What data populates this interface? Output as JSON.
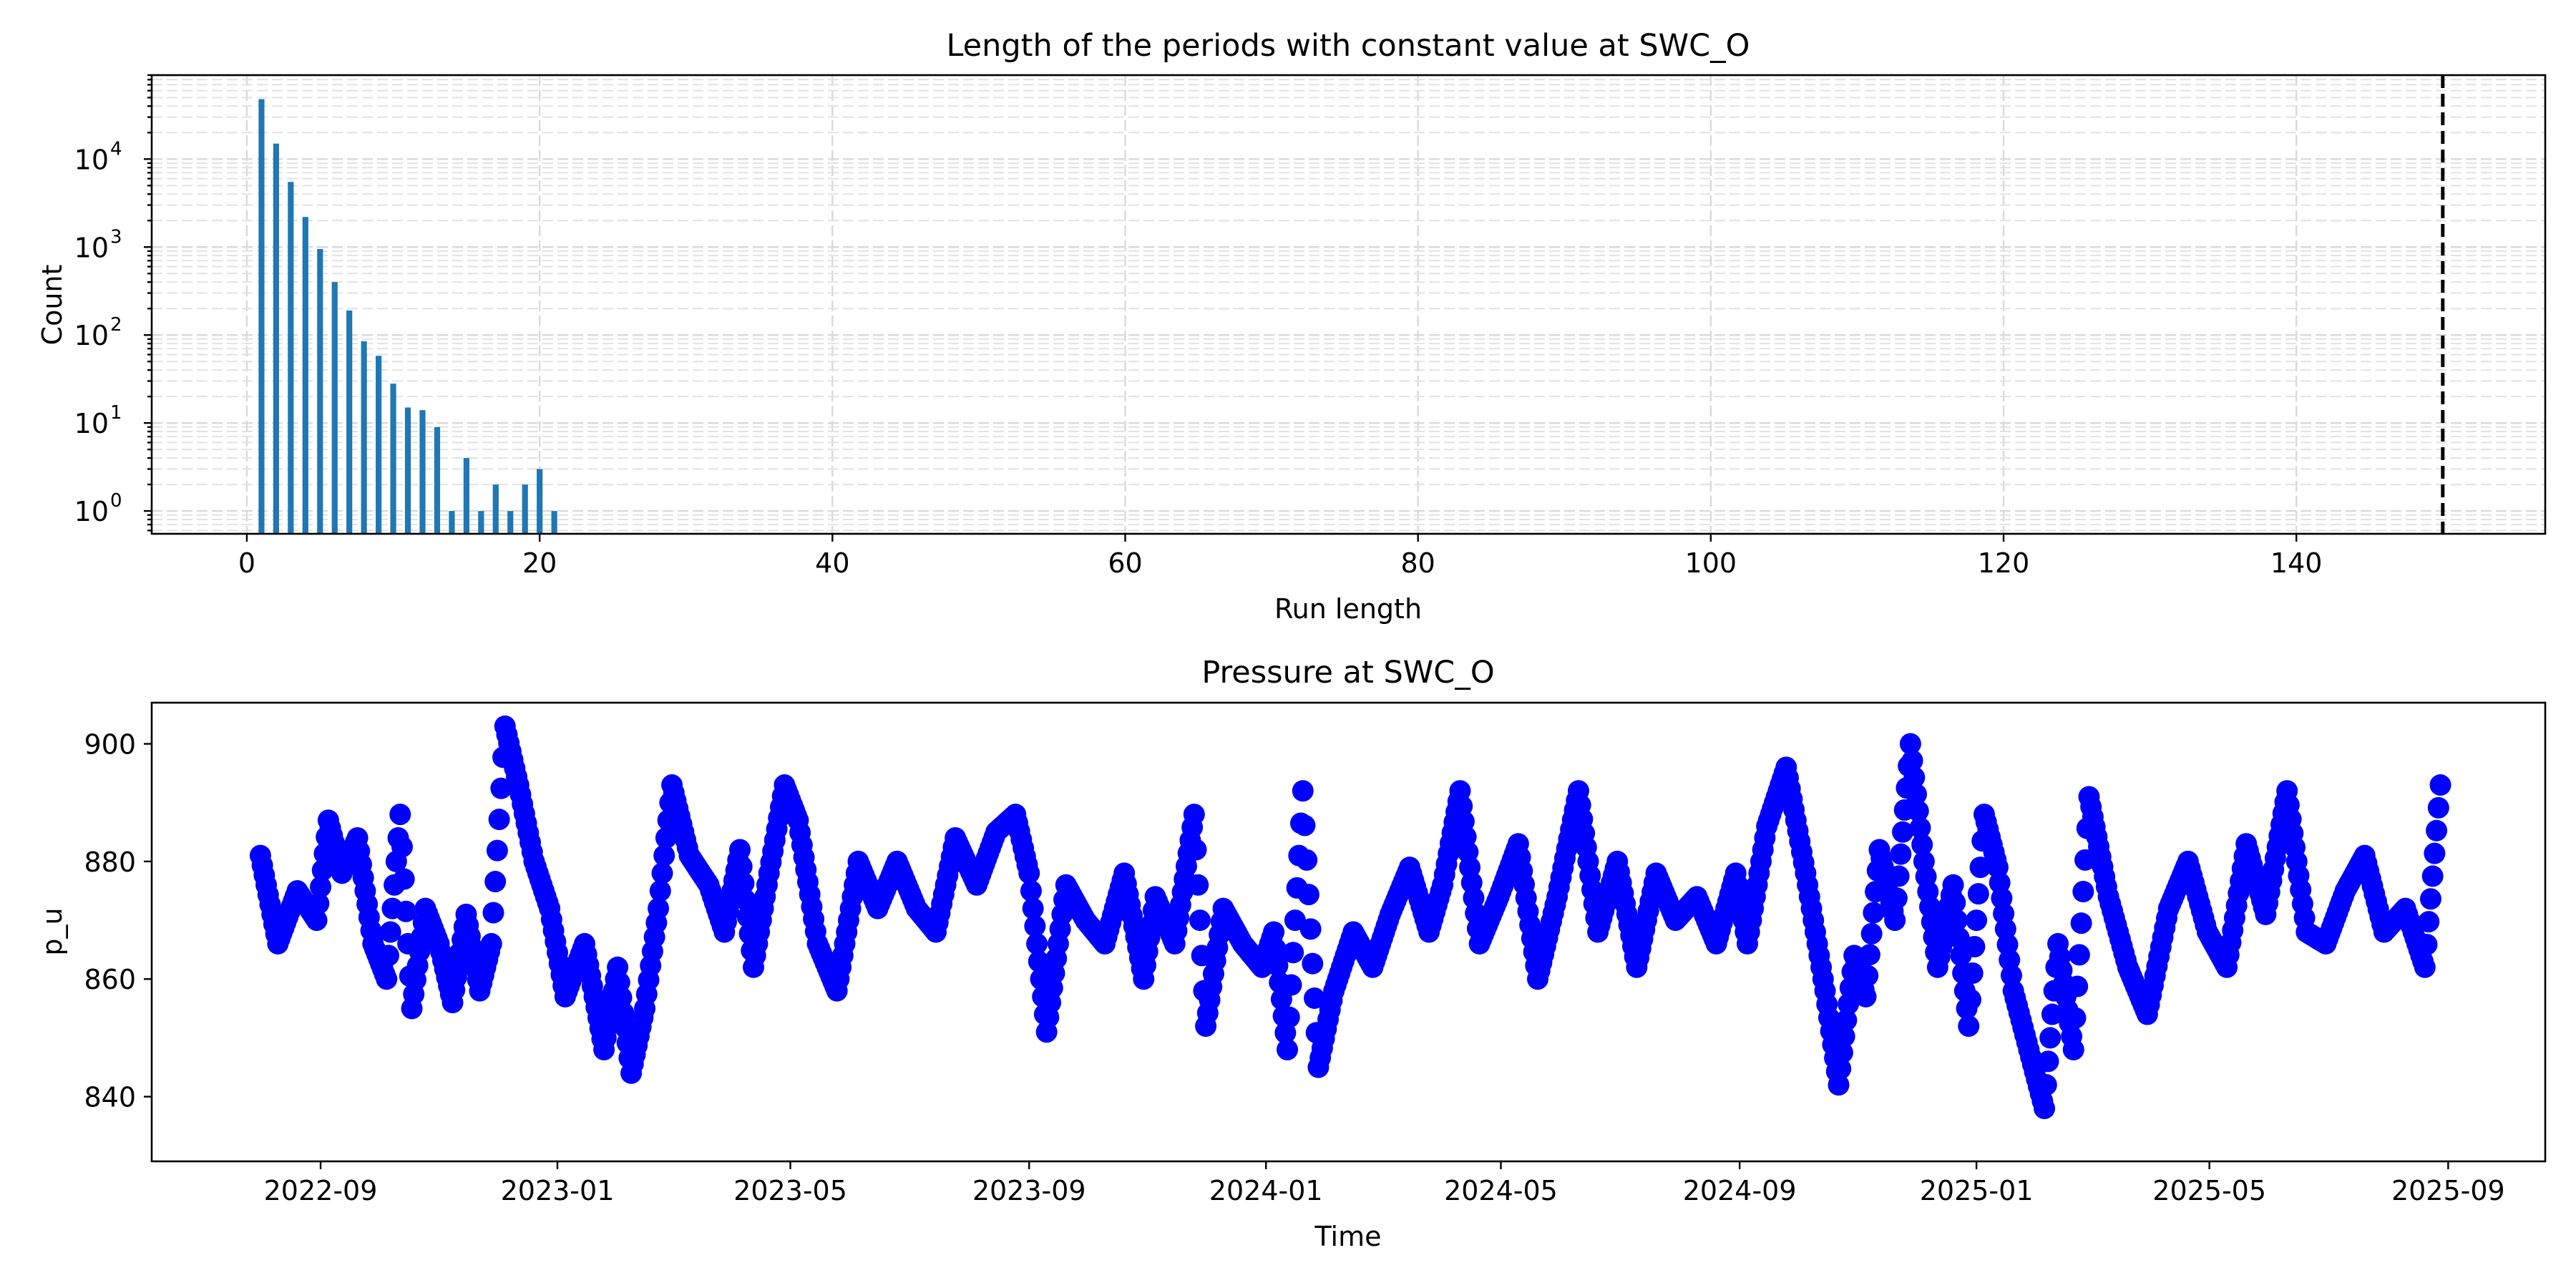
{
  "chart_data": [
    {
      "type": "bar",
      "title": "Length of the periods with constant value at SWC_O",
      "xlabel": "Run length",
      "ylabel": "Count",
      "yscale": "log",
      "xlim": [
        -6.5,
        157
      ],
      "ylim": [
        0.55,
        90000
      ],
      "xticks": [
        0,
        20,
        40,
        60,
        80,
        100,
        120,
        140
      ],
      "xtick_labels": [
        "0",
        "20",
        "40",
        "60",
        "80",
        "100",
        "120",
        "140"
      ],
      "yticks": [
        1,
        10,
        100,
        1000,
        10000
      ],
      "ytick_labels": [
        {
          "base": "10",
          "exp": "0"
        },
        {
          "base": "10",
          "exp": "1"
        },
        {
          "base": "10",
          "exp": "2"
        },
        {
          "base": "10",
          "exp": "3"
        },
        {
          "base": "10",
          "exp": "4"
        }
      ],
      "grid": true,
      "bar_color": "#1f77b4",
      "x": [
        1,
        2,
        3,
        4,
        5,
        6,
        7,
        8,
        9,
        10,
        11,
        12,
        13,
        14,
        15,
        16,
        17,
        18,
        19,
        20,
        21
      ],
      "values": [
        48000,
        15000,
        5500,
        2200,
        950,
        400,
        190,
        85,
        58,
        28,
        15,
        14,
        9,
        1,
        4,
        1,
        2,
        1,
        2,
        3,
        1
      ],
      "threshold": {
        "x": 150,
        "style": "dashed",
        "color": "#000000"
      }
    },
    {
      "type": "scatter",
      "title": "Pressure at SWC_O",
      "xlabel": "Time",
      "ylabel": "p_u",
      "xlim": [
        "2022-06-06",
        "2025-10-21"
      ],
      "ylim": [
        829,
        907
      ],
      "xticks": [
        "2022-09-01",
        "2023-01-01",
        "2023-05-01",
        "2023-09-01",
        "2024-01-01",
        "2024-05-01",
        "2024-09-01",
        "2025-01-01",
        "2025-05-01",
        "2025-09-01"
      ],
      "xtick_labels": [
        "2022-09",
        "2023-01",
        "2023-05",
        "2023-09",
        "2024-01",
        "2024-05",
        "2024-09",
        "2025-01",
        "2025-05",
        "2025-09"
      ],
      "yticks": [
        840,
        860,
        880,
        900
      ],
      "ytick_labels": [
        "840",
        "860",
        "880",
        "900"
      ],
      "grid": false,
      "series_color": "#0000ff",
      "x": [
        "2022-08-01",
        "2022-08-10",
        "2022-08-20",
        "2022-08-30",
        "2022-09-05",
        "2022-09-12",
        "2022-09-20",
        "2022-09-28",
        "2022-10-05",
        "2022-10-12",
        "2022-10-18",
        "2022-10-25",
        "2022-11-01",
        "2022-11-08",
        "2022-11-15",
        "2022-11-22",
        "2022-11-28",
        "2022-12-05",
        "2022-12-12",
        "2022-12-20",
        "2022-12-28",
        "2023-01-05",
        "2023-01-15",
        "2023-01-25",
        "2023-02-01",
        "2023-02-08",
        "2023-02-15",
        "2023-02-22",
        "2023-03-01",
        "2023-03-10",
        "2023-03-20",
        "2023-03-28",
        "2023-04-05",
        "2023-04-12",
        "2023-04-20",
        "2023-04-28",
        "2023-05-05",
        "2023-05-15",
        "2023-05-25",
        "2023-06-05",
        "2023-06-15",
        "2023-06-25",
        "2023-07-05",
        "2023-07-15",
        "2023-07-25",
        "2023-08-05",
        "2023-08-15",
        "2023-08-25",
        "2023-09-01",
        "2023-09-10",
        "2023-09-20",
        "2023-09-30",
        "2023-10-10",
        "2023-10-20",
        "2023-10-30",
        "2023-11-05",
        "2023-11-15",
        "2023-11-25",
        "2023-12-01",
        "2023-12-10",
        "2023-12-20",
        "2023-12-30",
        "2024-01-05",
        "2024-01-12",
        "2024-01-20",
        "2024-01-28",
        "2024-02-05",
        "2024-02-15",
        "2024-02-25",
        "2024-03-05",
        "2024-03-15",
        "2024-03-25",
        "2024-04-01",
        "2024-04-10",
        "2024-04-20",
        "2024-04-30",
        "2024-05-10",
        "2024-05-20",
        "2024-05-30",
        "2024-06-10",
        "2024-06-20",
        "2024-06-30",
        "2024-07-10",
        "2024-07-20",
        "2024-07-30",
        "2024-08-10",
        "2024-08-20",
        "2024-08-30",
        "2024-09-05",
        "2024-09-15",
        "2024-09-25",
        "2024-10-05",
        "2024-10-15",
        "2024-10-22",
        "2024-10-30",
        "2024-11-05",
        "2024-11-12",
        "2024-11-20",
        "2024-11-28",
        "2024-12-05",
        "2024-12-12",
        "2024-12-20",
        "2024-12-28",
        "2025-01-05",
        "2025-01-12",
        "2025-01-20",
        "2025-01-28",
        "2025-02-05",
        "2025-02-12",
        "2025-02-20",
        "2025-02-28",
        "2025-03-10",
        "2025-03-20",
        "2025-03-30",
        "2025-04-10",
        "2025-04-20",
        "2025-04-30",
        "2025-05-10",
        "2025-05-20",
        "2025-05-30",
        "2025-06-10",
        "2025-06-20",
        "2025-06-30",
        "2025-07-10",
        "2025-07-20",
        "2025-07-30",
        "2025-08-10",
        "2025-08-20",
        "2025-08-28"
      ],
      "y": [
        881,
        866,
        875,
        870,
        887,
        878,
        884,
        866,
        860,
        888,
        855,
        872,
        866,
        856,
        871,
        858,
        866,
        903,
        893,
        880,
        872,
        857,
        866,
        848,
        862,
        844,
        855,
        872,
        893,
        881,
        876,
        868,
        882,
        862,
        878,
        893,
        887,
        866,
        858,
        880,
        872,
        880,
        872,
        868,
        884,
        876,
        885,
        888,
        878,
        851,
        876,
        870,
        866,
        878,
        860,
        874,
        866,
        888,
        852,
        872,
        866,
        862,
        868,
        848,
        892,
        845,
        858,
        868,
        862,
        871,
        879,
        868,
        876,
        892,
        866,
        874,
        883,
        860,
        874,
        892,
        868,
        880,
        862,
        878,
        870,
        874,
        866,
        878,
        866,
        886,
        896,
        878,
        858,
        842,
        864,
        857,
        882,
        870,
        900,
        880,
        862,
        876,
        852,
        888,
        879,
        858,
        848,
        838,
        866,
        848,
        891,
        874,
        862,
        854,
        872,
        880,
        868,
        862,
        883,
        871,
        892,
        868,
        866,
        875,
        881,
        868,
        872,
        862,
        893
      ]
    }
  ]
}
